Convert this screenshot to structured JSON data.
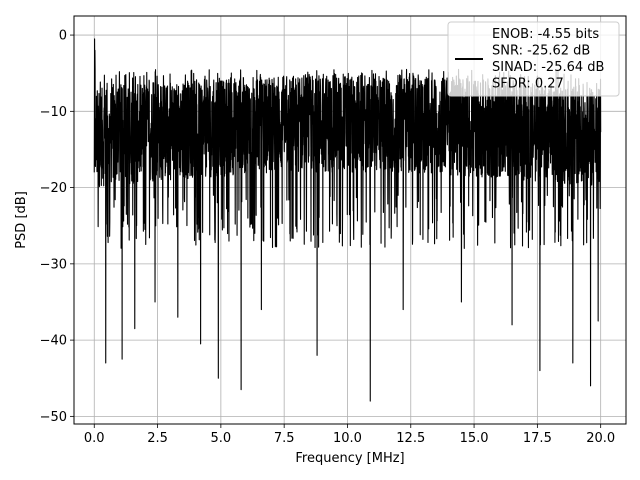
{
  "chart_data": {
    "type": "line",
    "title": "",
    "xlabel": "Frequency [MHz]",
    "ylabel": "PSD [dB]",
    "xlim": [
      -0.8,
      21.0
    ],
    "ylim": [
      -51,
      2.5
    ],
    "xticks": [
      0.0,
      2.5,
      5.0,
      7.5,
      10.0,
      12.5,
      15.0,
      17.5,
      20.0
    ],
    "xtick_labels": [
      "0.0",
      "2.5",
      "5.0",
      "7.5",
      "10.0",
      "12.5",
      "15.0",
      "17.5",
      "20.0"
    ],
    "yticks": [
      0,
      -10,
      -20,
      -30,
      -40,
      -50
    ],
    "ytick_labels": [
      "0",
      "−10",
      "−20",
      "−30",
      "−40",
      "−50"
    ],
    "grid": true,
    "legend_position": "top-right",
    "series_color": "#000000",
    "legend": {
      "lines": [
        "ENOB: -4.55 bits",
        "SNR: -25.62 dB",
        "SINAD: -25.64 dB",
        "SFDR: 0.27"
      ]
    },
    "series": [
      {
        "x_start": 0.0,
        "x_end": 20.0,
        "start_value": 0,
        "typical_max": -7,
        "typical_min": -20,
        "deep_nulls": [
          {
            "x": 0.45,
            "y": -43
          },
          {
            "x": 1.1,
            "y": -42.5
          },
          {
            "x": 1.6,
            "y": -38.5
          },
          {
            "x": 2.4,
            "y": -35
          },
          {
            "x": 3.3,
            "y": -37
          },
          {
            "x": 4.2,
            "y": -40.5
          },
          {
            "x": 4.9,
            "y": -45
          },
          {
            "x": 5.8,
            "y": -46.5
          },
          {
            "x": 6.6,
            "y": -36
          },
          {
            "x": 8.8,
            "y": -42
          },
          {
            "x": 10.9,
            "y": -48
          },
          {
            "x": 12.2,
            "y": -36
          },
          {
            "x": 14.5,
            "y": -35
          },
          {
            "x": 16.5,
            "y": -38
          },
          {
            "x": 17.6,
            "y": -44
          },
          {
            "x": 18.9,
            "y": -43
          },
          {
            "x": 19.6,
            "y": -46
          },
          {
            "x": 19.9,
            "y": -37.5
          }
        ]
      }
    ]
  }
}
